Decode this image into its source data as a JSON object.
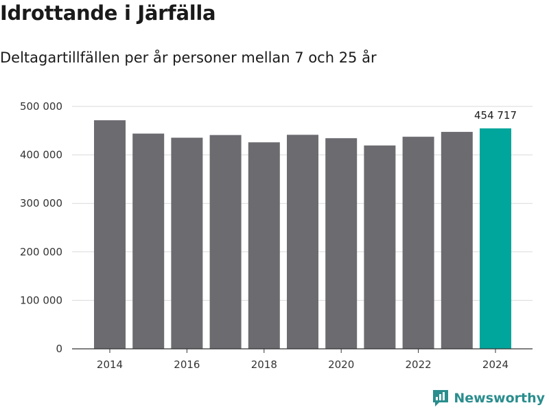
{
  "title": "Idrottande i Järfälla",
  "subtitle": "Deltagartillfällen per år personer mellan 7 och 25 år",
  "brand": {
    "name": "Newsworthy",
    "icon": "newsworthy-logo-icon",
    "color": "#2a8d8d"
  },
  "colors": {
    "bar": "#6c6b70",
    "highlight": "#00a59b",
    "grid": "#d9d9d9",
    "axis": "#333333"
  },
  "chart_data": {
    "type": "bar",
    "categories": [
      "2014",
      "2015",
      "2016",
      "2017",
      "2018",
      "2019",
      "2020",
      "2021",
      "2022",
      "2023",
      "2024"
    ],
    "values": [
      471500,
      444000,
      435500,
      441000,
      426000,
      441500,
      434500,
      419500,
      437500,
      447500,
      454717
    ],
    "highlight_index": 10,
    "data_labels": [
      {
        "index": 10,
        "text": "454 717"
      }
    ],
    "ylim": [
      0,
      500000
    ],
    "yticks": [
      0,
      100000,
      200000,
      300000,
      400000,
      500000
    ],
    "ytick_labels": [
      "0",
      "100 000",
      "200 000",
      "300 000",
      "400 000",
      "500 000"
    ],
    "xtick_labels": [
      "2014",
      "2016",
      "2018",
      "2020",
      "2022",
      "2024"
    ],
    "xtick_categories": [
      "2014",
      "2016",
      "2018",
      "2020",
      "2022",
      "2024"
    ],
    "grid": true
  }
}
